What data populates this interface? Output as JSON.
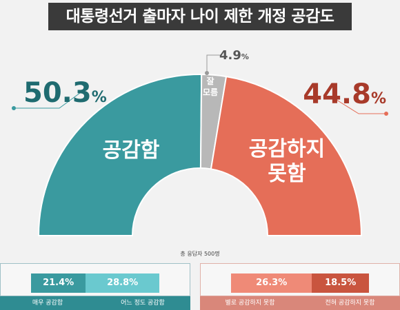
{
  "title": "대통령선거 출마자 나이 제한 개정 공감도",
  "respondents_note": "총 응답자 500명",
  "colors": {
    "agree": "#3a9a9f",
    "disagree": "#e56e58",
    "unsure": "#b8b8b8",
    "agree_text": "#1f6b70",
    "disagree_text": "#a83a2a",
    "agree_strong": "#3a9a9f",
    "agree_weak": "#6ac9cf",
    "disagree_weak": "#ef8a77",
    "disagree_strong": "#c9553f"
  },
  "chart_data": {
    "type": "pie",
    "subtype": "half-donut",
    "slices": [
      {
        "label": "공감함",
        "value": 50.3,
        "display": "50.3",
        "unit": "%"
      },
      {
        "label": "잘 모름",
        "value": 4.9,
        "display": "4.9",
        "unit": "%"
      },
      {
        "label": "공감하지 못함",
        "value": 44.8,
        "display": "44.8",
        "unit": "%"
      }
    ],
    "breakdown": {
      "agree": [
        {
          "label": "매우 공감함",
          "value": 21.4,
          "display": "21.4%"
        },
        {
          "label": "어느 정도 공감함",
          "value": 28.8,
          "display": "28.8%"
        }
      ],
      "disagree": [
        {
          "label": "별로 공감하지 못함",
          "value": 26.3,
          "display": "26.3%"
        },
        {
          "label": "전혀 공감하지 못함",
          "value": 18.5,
          "display": "18.5%"
        }
      ]
    }
  },
  "inner_labels": {
    "agree": "공감함",
    "unsure_line1": "잘",
    "unsure_line2": "모름",
    "disagree_line1": "공감하지",
    "disagree_line2": "못함"
  }
}
